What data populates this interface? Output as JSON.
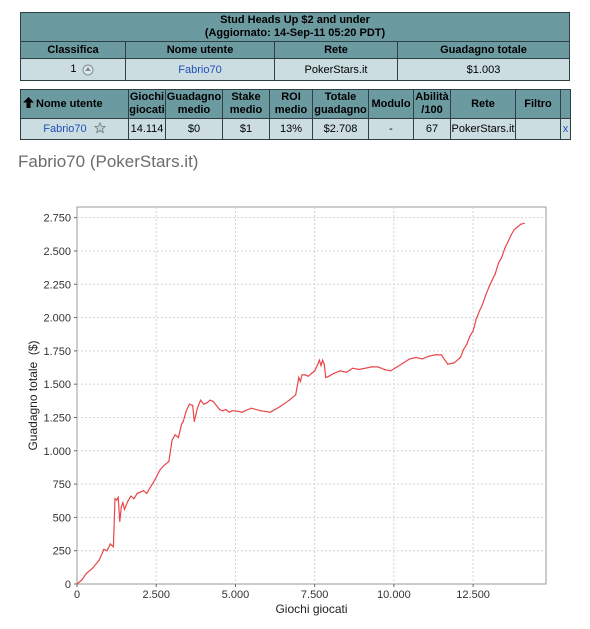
{
  "summary": {
    "title_line1": "Stud Heads Up $2 and under",
    "title_line2": "(Aggiornato: 14-Sep-11 05:20 PDT)",
    "headers": [
      "Classifica",
      "Nome utente",
      "Rete",
      "Guadagno totale"
    ],
    "row": {
      "rank": "1",
      "user": "Fabrio70",
      "network": "PokerStars.it",
      "profit": "$1.003"
    }
  },
  "details": {
    "headers": {
      "user": "Nome utente",
      "games_1": "Giochi",
      "games_2": "giocati",
      "avg_profit_1": "Guadagno",
      "avg_profit_2": "medio",
      "stake_1": "Stake",
      "stake_2": "medio",
      "roi_1": "ROI",
      "roi_2": "medio",
      "total_1": "Totale",
      "total_2": "guadagno",
      "module": "Modulo",
      "ability_1": "Abilità",
      "ability_2": "/100",
      "network": "Rete",
      "filter": "Filtro"
    },
    "row": {
      "user": "Fabrio70",
      "games": "14.114",
      "avg_profit": "$0",
      "stake": "$1",
      "roi": "13%",
      "total": "$2.708",
      "module": "-",
      "ability": "67",
      "network": "PokerStars.it",
      "filter": "",
      "remove": "x"
    }
  },
  "heading": "Fabrio70 (PokerStars.it)",
  "colors": {
    "header_bg": "#6c9aa1",
    "row_bg": "#cbdde0",
    "line": "#e8464a"
  },
  "icons": {
    "rank": "rank-change-icon",
    "star": "star-icon",
    "sort": "sort-up-arrow-icon"
  },
  "chart_data": {
    "type": "line",
    "xlabel": "Giochi giocati",
    "ylabel": "Guadagno totale  ($)",
    "xlim": [
      0,
      14800
    ],
    "ylim": [
      0,
      2830
    ],
    "xticks": [
      0,
      2500,
      5000,
      7500,
      10000,
      12500
    ],
    "xtick_labels": [
      "0",
      "2.500",
      "5.000",
      "7.500",
      "10.000",
      "12.500"
    ],
    "yticks": [
      0,
      250,
      500,
      750,
      1000,
      1250,
      1500,
      1750,
      2000,
      2250,
      2500,
      2750
    ],
    "ytick_labels": [
      "0",
      "250",
      "500",
      "750",
      "1.000",
      "1.250",
      "1.500",
      "1.750",
      "2.000",
      "2.250",
      "2.500",
      "2.750"
    ],
    "grid": true,
    "series": [
      {
        "x": [
          0,
          150,
          300,
          500,
          700,
          850,
          950,
          1050,
          1150,
          1200,
          1250,
          1300,
          1350,
          1400,
          1450,
          1500,
          1600,
          1700,
          1800,
          1900,
          2000,
          2100,
          2200,
          2300,
          2400,
          2500,
          2600,
          2700,
          2800,
          2900,
          3000,
          3100,
          3200,
          3250,
          3300,
          3350,
          3450,
          3550,
          3650,
          3700,
          3800,
          3900,
          4000,
          4100,
          4200,
          4300,
          4400,
          4500,
          4600,
          4700,
          4800,
          4900,
          5000,
          5200,
          5500,
          5800,
          6100,
          6400,
          6700,
          6900,
          7000,
          7050,
          7100,
          7200,
          7300,
          7400,
          7500,
          7600,
          7650,
          7700,
          7750,
          7800,
          7850,
          7950,
          8100,
          8300,
          8500,
          8700,
          8900,
          9100,
          9300,
          9500,
          9700,
          9900,
          10100,
          10300,
          10500,
          10700,
          10900,
          11100,
          11300,
          11500,
          11700,
          11900,
          12100,
          12200,
          12300,
          12400,
          12500,
          12600,
          12700,
          12800,
          12900,
          13000,
          13100,
          13200,
          13300,
          13400,
          13500,
          13600,
          13700,
          13800,
          13900,
          14000,
          14114
        ],
        "y": [
          0,
          30,
          80,
          120,
          180,
          260,
          250,
          300,
          280,
          640,
          630,
          650,
          470,
          580,
          610,
          560,
          620,
          660,
          640,
          680,
          690,
          700,
          680,
          720,
          760,
          800,
          850,
          880,
          900,
          920,
          1080,
          1120,
          1100,
          1150,
          1200,
          1220,
          1300,
          1350,
          1340,
          1220,
          1320,
          1380,
          1350,
          1360,
          1380,
          1370,
          1340,
          1310,
          1300,
          1310,
          1290,
          1300,
          1300,
          1290,
          1320,
          1300,
          1290,
          1330,
          1380,
          1420,
          1550,
          1520,
          1570,
          1570,
          1560,
          1580,
          1600,
          1650,
          1680,
          1640,
          1680,
          1650,
          1550,
          1560,
          1580,
          1600,
          1590,
          1620,
          1610,
          1620,
          1630,
          1630,
          1610,
          1600,
          1630,
          1660,
          1690,
          1700,
          1690,
          1710,
          1720,
          1720,
          1650,
          1660,
          1700,
          1760,
          1800,
          1860,
          1900,
          1990,
          2050,
          2100,
          2170,
          2230,
          2280,
          2330,
          2410,
          2450,
          2520,
          2570,
          2620,
          2660,
          2680,
          2700,
          2708
        ]
      }
    ]
  }
}
